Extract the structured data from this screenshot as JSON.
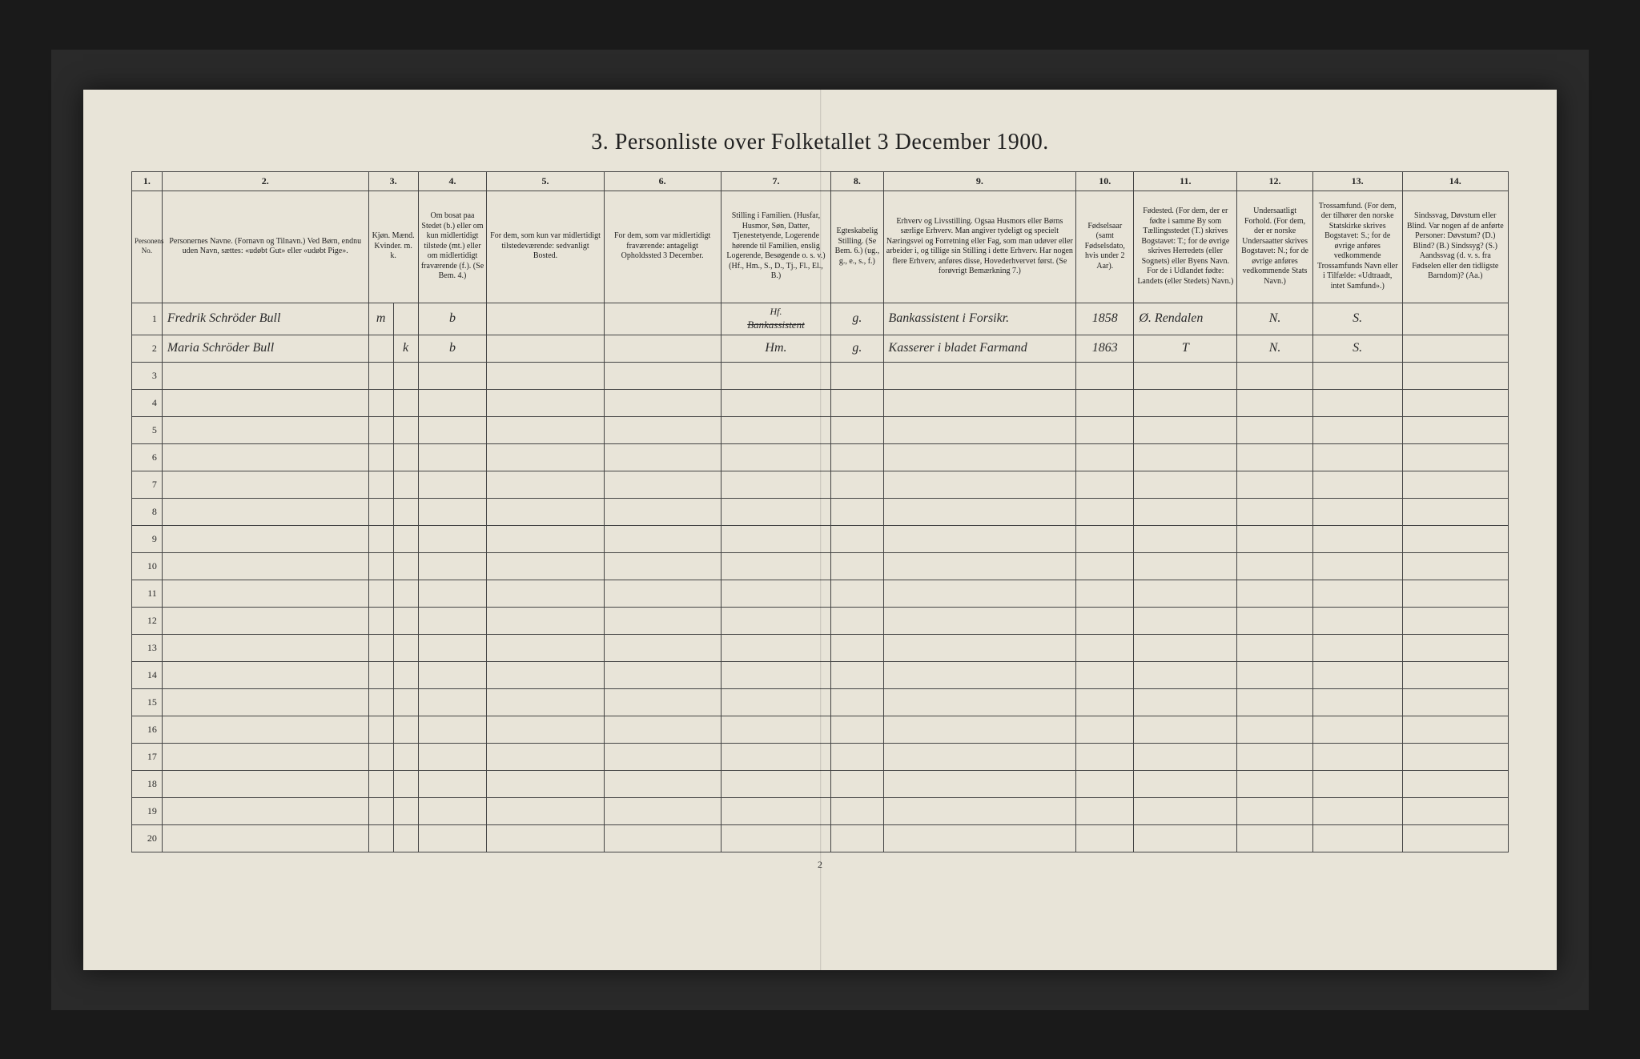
{
  "title": "3. Personliste over Folketallet 3 December 1900.",
  "page_number": "2",
  "columns": {
    "nums": [
      "1.",
      "2.",
      "3.",
      "4.",
      "5.",
      "6.",
      "7.",
      "8.",
      "9.",
      "10.",
      "11.",
      "12.",
      "13.",
      "14."
    ],
    "h1": "Personens No.",
    "h2": "Personernes Navne.\n(Fornavn og Tilnavn.)\nVed Børn, endnu uden Navn, sættes: «udøbt Gut» eller «udøbt Pige».",
    "h3": "Kjøn.\nMænd.  Kvinder.\nm.  k.",
    "h4": "Om bosat paa Stedet (b.) eller om kun midlertidigt tilstede (mt.) eller om midlertidigt fraværende (f.).\n(Se Bem. 4.)",
    "h5": "For dem, som kun var midlertidigt tilstedeværende:\nsedvanligt Bosted.",
    "h6": "For dem, som var midlertidigt fraværende:\nantageligt Opholdssted 3 December.",
    "h7": "Stilling i Familien.\n(Husfar, Husmor, Søn, Datter, Tjenestetyende, Logerende hørende til Familien, enslig Logerende, Besøgende o. s. v.)\n(Hf., Hm., S., D., Tj., Fl., El., B.)",
    "h8": "Egteskabelig Stilling.\n(Se Bem. 6.)\n(ug., g., e., s., f.)",
    "h9": "Erhverv og Livsstilling.\nOgsaa Husmors eller Børns særlige Erhverv. Man angiver tydeligt og specielt Næringsvei og Forretning eller Fag, som man udøver eller arbeider i, og tillige sin Stilling i dette Erhverv. Har nogen flere Erhverv, anføres disse, Hovederhvervet først.\n(Se forøvrigt Bemærkning 7.)",
    "h10": "Fødselsaar\n(samt Fødselsdato, hvis under 2 Aar).",
    "h11": "Fødested.\n(For dem, der er fødte i samme By som Tællingsstedet (T.) skrives Bogstavet: T.; for de øvrige skrives Herredets (eller Sognets) eller Byens Navn. For de i Udlandet fødte: Landets (eller Stedets) Navn.)",
    "h12": "Undersaatligt Forhold.\n(For dem, der er norske Undersaatter skrives Bogstavet: N.; for de øvrige anføres vedkommende Stats Navn.)",
    "h13": "Trossamfund.\n(For dem, der tilhører den norske Statskirke skrives Bogstavet: S.; for de øvrige anføres vedkommende Trossamfunds Navn eller i Tilfælde: «Udtraadt, intet Samfund».)",
    "h14": "Sindssvag, Døvstum eller Blind.\nVar nogen af de anførte Personer:\nDøvstum? (D.)\nBlind? (B.)\nSindssyg? (S.)\nAandssvag (d. v. s. fra Fødselen eller den tidligste Barndom)? (Aa.)"
  },
  "rows": [
    {
      "num": "1",
      "name": "Fredrik Schröder Bull",
      "sex": "m",
      "res": "b",
      "c5": "",
      "c6": "",
      "famstatus_strike": "Bankassistent",
      "famstatus_above": "Hf.",
      "marital": "g.",
      "occupation": "Bankassistent i Forsikr.",
      "birthyear": "1858",
      "birthplace": "Ø. Rendalen",
      "nationality": "N.",
      "faith": "S.",
      "c14": ""
    },
    {
      "num": "2",
      "name": "Maria Schröder Bull",
      "sex": "k",
      "res": "b",
      "c5": "",
      "c6": "",
      "famstatus": "Hm.",
      "marital": "g.",
      "occupation": "Kasserer i bladet Farmand",
      "birthyear": "1863",
      "birthplace": "T",
      "nationality": "N.",
      "faith": "S.",
      "c14": ""
    }
  ],
  "empty_rows": [
    "3",
    "4",
    "5",
    "6",
    "7",
    "8",
    "9",
    "10",
    "11",
    "12",
    "13",
    "14",
    "15",
    "16",
    "17",
    "18",
    "19",
    "20"
  ],
  "col_widths": {
    "c1": "2.2%",
    "c2": "15%",
    "c3m": "1.8%",
    "c3k": "1.8%",
    "c4": "5%",
    "c5": "8.5%",
    "c6": "8.5%",
    "c7": "8%",
    "c8": "3.8%",
    "c9": "14%",
    "c10": "4.2%",
    "c11": "7.5%",
    "c12": "5.5%",
    "c13": "6.5%",
    "c14": "7.7%"
  }
}
